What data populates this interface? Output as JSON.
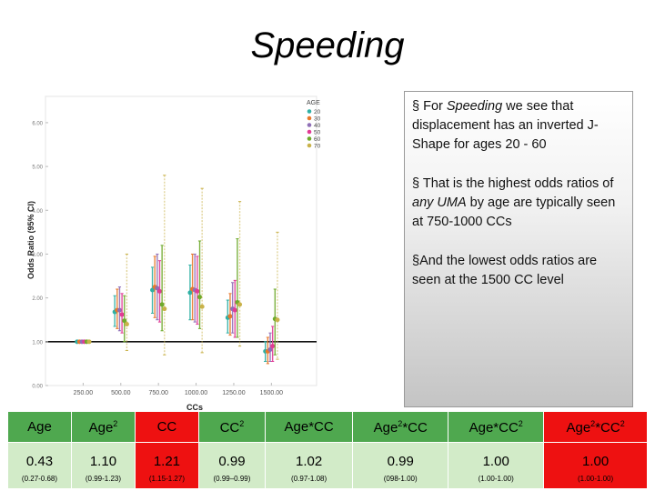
{
  "title": "Speeding",
  "notes": {
    "p1_a": "§ For ",
    "p1_italic": "Speeding",
    "p1_b": " we see that displacement has an inverted J-Shape for ages 20 - 60",
    "p2_a": "§ That is the highest odds ratios of ",
    "p2_italic": "any UMA",
    "p2_b": " by age are typically seen at 750-1000 CCs",
    "p3": "§And the lowest odds ratios are seen at the 1500 CC level"
  },
  "table": {
    "headers": [
      {
        "base": "Age",
        "sup": ""
      },
      {
        "base": "Age",
        "sup": "2"
      },
      {
        "base": "CC",
        "sup": ""
      },
      {
        "base": "CC",
        "sup": "2"
      },
      {
        "base": "Age*CC",
        "sup": ""
      },
      {
        "base": "Age",
        "sup": "2",
        "tail": "*CC"
      },
      {
        "base": "Age*CC",
        "sup": "2"
      },
      {
        "base": "Age",
        "sup": "2",
        "tail": "*CC",
        "sup2": "2"
      }
    ],
    "values": [
      "0.43",
      "1.10",
      "1.21",
      "0.99",
      "1.02",
      "0.99",
      "1.00",
      "1.00"
    ],
    "cis": [
      "(0.27-0.68)",
      "(0.99-1.23)",
      "(1.15-1.27)",
      "(0.99–0.99)",
      "(0.97-1.08)",
      "(098-1.00)",
      "(1.00-1.00)",
      "(1.00-1.00)"
    ],
    "colors": {
      "red": "#ee1111",
      "green_dark": "#4fa84f",
      "green_light": "#d2ebc8",
      "red_text_cell": "#ffffff"
    },
    "header_fill": [
      "green_dark",
      "green_dark",
      "red",
      "green_dark",
      "green_dark",
      "green_dark",
      "green_dark",
      "red"
    ],
    "value_fill": [
      "green_light",
      "green_light",
      "red",
      "green_light",
      "green_light",
      "green_light",
      "green_light",
      "red"
    ]
  },
  "chart_data": {
    "type": "scatter",
    "xlabel": "CCs",
    "ylabel": "Odds Ratio (95% CI)",
    "xlim": [
      0,
      1800
    ],
    "ylim": [
      0,
      6.6
    ],
    "x_ticks": [
      250,
      500,
      750,
      1000,
      1250,
      1500
    ],
    "x_tick_labels": [
      "250.00",
      "500.00",
      "750.00",
      "1000.00",
      "1250.00",
      "1500.00"
    ],
    "y_ticks": [
      0,
      1,
      2,
      3,
      4,
      5,
      6
    ],
    "y_tick_labels": [
      "0.00",
      "1.00",
      "2.00",
      "3.00",
      "4.00",
      "5.00",
      "6.00"
    ],
    "reference_line": 1.0,
    "legend": {
      "title": "AGE",
      "position": "top-right",
      "labels": [
        "20",
        "30",
        "40",
        "50",
        "60",
        "70"
      ]
    },
    "series_colors": [
      "#2fb0a5",
      "#e8782b",
      "#8f6fb6",
      "#e23a95",
      "#6eaa2c",
      "#c9b24a"
    ],
    "offsets_cc": [
      -40,
      -24,
      -8,
      8,
      24,
      40
    ],
    "series": [
      {
        "name": "20",
        "points": [
          {
            "x": 250,
            "y": 1.0,
            "lo": 1.0,
            "hi": 1.0
          },
          {
            "x": 500,
            "y": 1.68,
            "lo": 1.35,
            "hi": 2.05
          },
          {
            "x": 750,
            "y": 2.18,
            "lo": 1.65,
            "hi": 2.7
          },
          {
            "x": 1000,
            "y": 2.12,
            "lo": 1.5,
            "hi": 2.75
          },
          {
            "x": 1250,
            "y": 1.55,
            "lo": 1.2,
            "hi": 1.95
          },
          {
            "x": 1500,
            "y": 0.78,
            "lo": 0.55,
            "hi": 1.0
          }
        ]
      },
      {
        "name": "30",
        "points": [
          {
            "x": 250,
            "y": 1.0,
            "lo": 1.0,
            "hi": 1.0
          },
          {
            "x": 500,
            "y": 1.72,
            "lo": 1.3,
            "hi": 2.2
          },
          {
            "x": 750,
            "y": 2.25,
            "lo": 1.55,
            "hi": 2.95
          },
          {
            "x": 1000,
            "y": 2.2,
            "lo": 1.5,
            "hi": 3.0
          },
          {
            "x": 1250,
            "y": 1.58,
            "lo": 1.15,
            "hi": 2.1
          },
          {
            "x": 1500,
            "y": 0.78,
            "lo": 0.5,
            "hi": 1.1
          }
        ]
      },
      {
        "name": "40",
        "points": [
          {
            "x": 250,
            "y": 1.0,
            "lo": 1.0,
            "hi": 1.0
          },
          {
            "x": 500,
            "y": 1.72,
            "lo": 1.25,
            "hi": 2.25
          },
          {
            "x": 750,
            "y": 2.22,
            "lo": 1.5,
            "hi": 3.0
          },
          {
            "x": 1000,
            "y": 2.18,
            "lo": 1.45,
            "hi": 3.0
          },
          {
            "x": 1250,
            "y": 1.75,
            "lo": 1.2,
            "hi": 2.35
          },
          {
            "x": 1500,
            "y": 0.82,
            "lo": 0.55,
            "hi": 1.2
          }
        ]
      },
      {
        "name": "50",
        "points": [
          {
            "x": 250,
            "y": 1.0,
            "lo": 1.0,
            "hi": 1.0
          },
          {
            "x": 500,
            "y": 1.62,
            "lo": 1.2,
            "hi": 2.1
          },
          {
            "x": 750,
            "y": 2.15,
            "lo": 1.45,
            "hi": 2.85
          },
          {
            "x": 1000,
            "y": 2.15,
            "lo": 1.4,
            "hi": 2.95
          },
          {
            "x": 1250,
            "y": 1.72,
            "lo": 1.1,
            "hi": 2.4
          },
          {
            "x": 1500,
            "y": 0.9,
            "lo": 0.55,
            "hi": 1.35
          }
        ]
      },
      {
        "name": "60",
        "points": [
          {
            "x": 250,
            "y": 1.0,
            "lo": 1.0,
            "hi": 1.0
          },
          {
            "x": 500,
            "y": 1.48,
            "lo": 1.0,
            "hi": 2.05
          },
          {
            "x": 750,
            "y": 1.85,
            "lo": 1.25,
            "hi": 3.2
          },
          {
            "x": 1000,
            "y": 2.02,
            "lo": 1.3,
            "hi": 3.3
          },
          {
            "x": 1250,
            "y": 1.9,
            "lo": 1.1,
            "hi": 3.35
          },
          {
            "x": 1500,
            "y": 1.52,
            "lo": 0.7,
            "hi": 2.2
          }
        ]
      },
      {
        "name": "70",
        "points": [
          {
            "x": 250,
            "y": 1.0,
            "lo": 1.0,
            "hi": 1.0
          },
          {
            "x": 500,
            "y": 1.4,
            "lo": 0.8,
            "hi": 3.0
          },
          {
            "x": 750,
            "y": 1.75,
            "lo": 0.7,
            "hi": 4.8
          },
          {
            "x": 1000,
            "y": 1.8,
            "lo": 0.75,
            "hi": 4.5
          },
          {
            "x": 1250,
            "y": 1.85,
            "lo": 0.9,
            "hi": 4.2
          },
          {
            "x": 1500,
            "y": 1.5,
            "lo": 0.6,
            "hi": 3.5
          }
        ]
      }
    ]
  }
}
